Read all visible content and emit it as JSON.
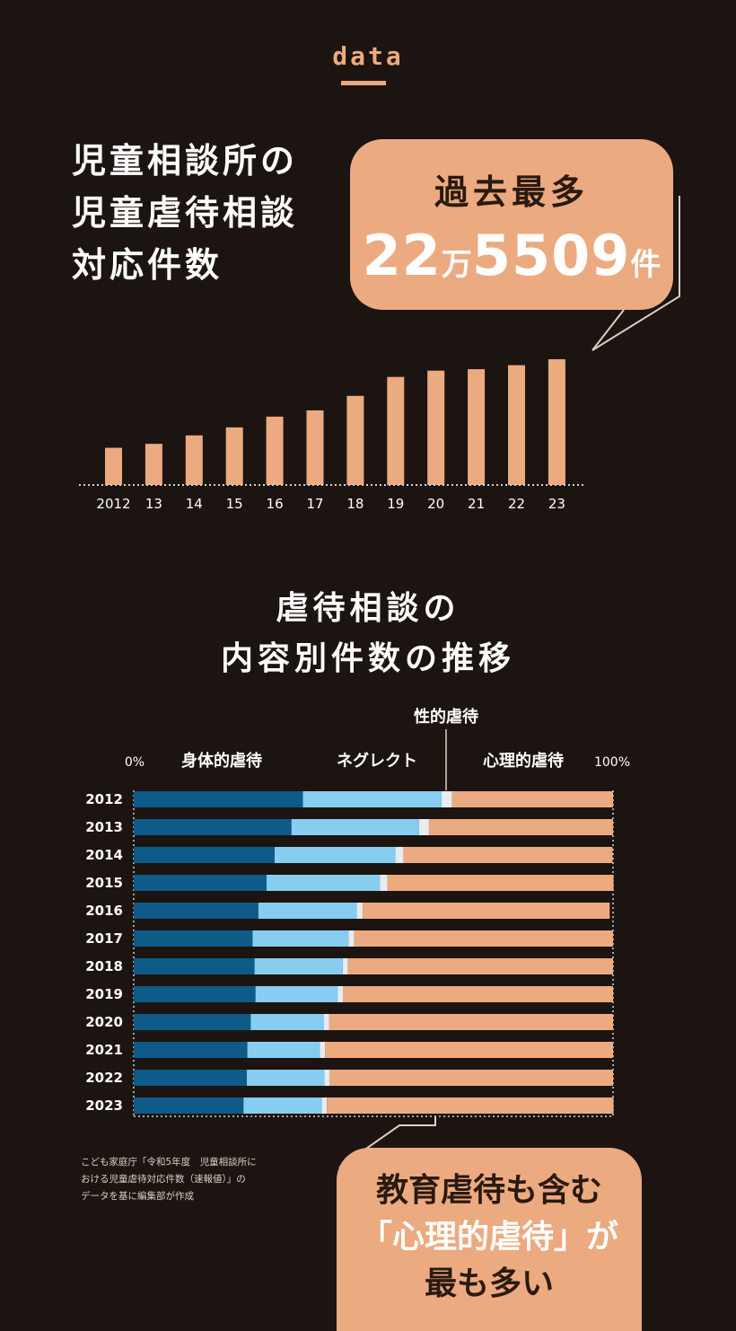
{
  "header": {
    "tag": "data"
  },
  "section1": {
    "title_lines": [
      "児童相談所の",
      "児童虐待相談",
      "対応件数"
    ],
    "callout": {
      "heading": "過去最多",
      "value_big_1": "22",
      "value_small_1": "万",
      "value_big_2": "5509",
      "value_small_2": "件"
    }
  },
  "section2": {
    "title_lines": [
      "虐待相談の",
      "内容別件数の推移"
    ],
    "callout_lines": [
      "教育虐待も含む",
      "「心理的虐待」が",
      "最も多い"
    ],
    "source_lines": [
      "こども家庭庁「令和5年度　児童相談所に",
      "おける児童虐待対応件数（速報値）」の",
      "データを基に編集部が作成"
    ]
  },
  "colors": {
    "background": "#1c1410",
    "accent": "#ecaa80",
    "physical": "#0e5a88",
    "neglect": "#86cdf0",
    "sexual": "#e6ecef",
    "psychological": "#ecaa80"
  },
  "chart_data": [
    {
      "type": "bar",
      "categories": [
        "2012",
        "13",
        "14",
        "15",
        "16",
        "17",
        "18",
        "19",
        "20",
        "21",
        "22",
        "23"
      ],
      "values": [
        66701,
        73802,
        88931,
        103286,
        122575,
        133778,
        159838,
        193780,
        205044,
        207660,
        214843,
        225509
      ],
      "ylim": [
        0,
        225509
      ]
    },
    {
      "type": "bar",
      "orientation": "horizontal-stacked-percent",
      "categories": [
        "2012",
        "2013",
        "2014",
        "2015",
        "2016",
        "2017",
        "2018",
        "2019",
        "2020",
        "2021",
        "2022",
        "2023"
      ],
      "xlim": [
        0,
        100
      ],
      "axis_labels": {
        "min": "0%",
        "max": "100%"
      },
      "series": [
        {
          "name": "身体的虐待",
          "values": [
            35.3,
            32.9,
            29.4,
            27.7,
            26.0,
            24.8,
            25.2,
            25.4,
            24.4,
            23.7,
            23.6,
            22.9
          ]
        },
        {
          "name": "ネグレクト",
          "values": [
            28.9,
            26.6,
            25.2,
            23.7,
            20.5,
            20.0,
            18.4,
            17.2,
            15.3,
            15.1,
            16.2,
            16.3
          ]
        },
        {
          "name": "性的虐待",
          "values": [
            2.2,
            2.1,
            1.7,
            1.5,
            1.3,
            1.2,
            1.1,
            1.1,
            1.1,
            1.1,
            1.1,
            1.1
          ]
        },
        {
          "name": "心理的虐待",
          "values": [
            33.6,
            38.4,
            43.6,
            47.2,
            51.5,
            54.0,
            55.3,
            56.3,
            59.2,
            60.1,
            59.1,
            59.8
          ]
        }
      ]
    }
  ]
}
